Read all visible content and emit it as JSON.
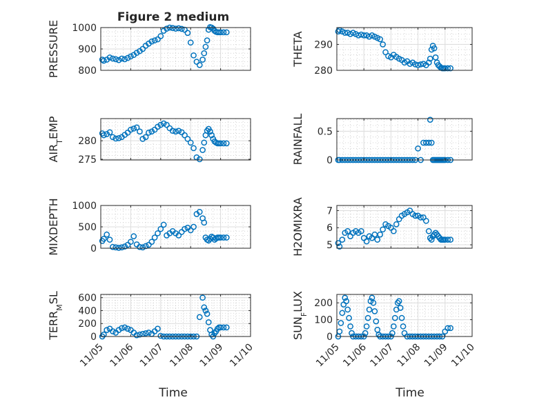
{
  "figure": {
    "title": "Figure 2 medium",
    "xlabel": "Time"
  },
  "colors": {
    "marker": "#0072BD",
    "axis": "#262626",
    "grid": "#dcdcdc",
    "minor_grid": "#c8c8c8"
  },
  "chart_data": [
    {
      "type": "scatter",
      "ylabel": "PRESSURE",
      "grid": true,
      "xlim": [
        "11/05",
        "11/10"
      ],
      "ylim": [
        800,
        1000
      ],
      "yticks": [
        800,
        900,
        1000
      ],
      "x": [
        0.05,
        0.1,
        0.2,
        0.3,
        0.4,
        0.5,
        0.6,
        0.7,
        0.8,
        0.9,
        1.0,
        1.1,
        1.2,
        1.3,
        1.4,
        1.5,
        1.6,
        1.7,
        1.8,
        1.9,
        2.0,
        2.1,
        2.2,
        2.3,
        2.4,
        2.5,
        2.6,
        2.7,
        2.8,
        2.9,
        3.0,
        3.1,
        3.2,
        3.3,
        3.4,
        3.45,
        3.5,
        3.55,
        3.6,
        3.65,
        3.7,
        3.75,
        3.8,
        3.85,
        3.9,
        3.95,
        4.0,
        4.1,
        4.2
      ],
      "y": [
        850,
        845,
        850,
        860,
        855,
        852,
        848,
        855,
        852,
        858,
        865,
        872,
        882,
        890,
        900,
        915,
        925,
        935,
        940,
        945,
        960,
        985,
        995,
        1000,
        998,
        995,
        997,
        994,
        990,
        975,
        930,
        870,
        840,
        825,
        850,
        880,
        910,
        940,
        990,
        1002,
        1000,
        995,
        985,
        980,
        978,
        978,
        978,
        978,
        978
      ]
    },
    {
      "type": "scatter",
      "ylabel": "THETA",
      "grid": true,
      "xlim": [
        "11/05",
        "11/10"
      ],
      "ylim": [
        280,
        296.5
      ],
      "yticks": [
        280,
        290
      ],
      "x": [
        0.05,
        0.1,
        0.2,
        0.3,
        0.4,
        0.5,
        0.6,
        0.7,
        0.8,
        0.9,
        1.0,
        1.1,
        1.2,
        1.3,
        1.4,
        1.5,
        1.6,
        1.7,
        1.8,
        1.9,
        2.0,
        2.1,
        2.2,
        2.3,
        2.4,
        2.5,
        2.6,
        2.7,
        2.8,
        2.9,
        3.0,
        3.1,
        3.2,
        3.3,
        3.4,
        3.45,
        3.5,
        3.55,
        3.6,
        3.65,
        3.7,
        3.75,
        3.8,
        3.85,
        3.9,
        3.95,
        4.0,
        4.1,
        4.2
      ],
      "y": [
        295,
        295.5,
        295,
        294.5,
        294.5,
        294,
        294.5,
        294,
        293.5,
        293.8,
        293.5,
        293.5,
        293,
        293.5,
        293,
        292.5,
        292,
        290,
        287,
        285.5,
        285,
        286,
        285.2,
        284.5,
        284,
        283,
        283.5,
        282.5,
        283,
        282.3,
        282,
        282.3,
        282.5,
        282,
        283,
        284.5,
        288,
        289.5,
        288.5,
        285,
        283,
        282,
        281.5,
        281,
        280.8,
        280.8,
        280.8,
        280.8,
        280.8
      ]
    },
    {
      "type": "scatter",
      "ylabel": "AIR_TEMP",
      "grid": true,
      "xlim": [
        "11/05",
        "11/10"
      ],
      "ylim": [
        274.8,
        286
      ],
      "yticks": [
        275,
        280
      ],
      "x": [
        0.05,
        0.1,
        0.2,
        0.3,
        0.4,
        0.5,
        0.6,
        0.7,
        0.8,
        0.9,
        1.0,
        1.1,
        1.2,
        1.3,
        1.4,
        1.5,
        1.6,
        1.7,
        1.8,
        1.9,
        2.0,
        2.1,
        2.2,
        2.3,
        2.4,
        2.5,
        2.6,
        2.7,
        2.8,
        2.9,
        3.0,
        3.1,
        3.2,
        3.3,
        3.4,
        3.45,
        3.5,
        3.55,
        3.6,
        3.65,
        3.7,
        3.75,
        3.8,
        3.85,
        3.9,
        3.95,
        4.0,
        4.1,
        4.2
      ],
      "y": [
        282,
        281.5,
        281.8,
        282.3,
        281,
        280.6,
        280.7,
        281,
        281.6,
        282.2,
        283,
        283.3,
        283.6,
        282.5,
        280.5,
        281,
        282.2,
        282.5,
        283,
        283.8,
        284.3,
        284.7,
        284.3,
        283.4,
        282.7,
        282.5,
        282.7,
        282.3,
        281.5,
        280.5,
        279.5,
        278,
        275.5,
        275,
        277.5,
        279.5,
        281.5,
        282.7,
        283.2,
        282.5,
        281.5,
        280.5,
        279.8,
        279.5,
        279.3,
        279.3,
        279.3,
        279.3,
        279.3
      ]
    },
    {
      "type": "scatter",
      "ylabel": "RAINFALL",
      "grid": true,
      "xlim": [
        "11/05",
        "11/10"
      ],
      "ylim": [
        0,
        0.72
      ],
      "yticks": [
        0,
        0.5
      ],
      "x": [
        0.05,
        0.1,
        0.2,
        0.3,
        0.4,
        0.5,
        0.6,
        0.7,
        0.8,
        0.9,
        1.0,
        1.1,
        1.2,
        1.3,
        1.4,
        1.5,
        1.6,
        1.7,
        1.8,
        1.9,
        2.0,
        2.1,
        2.2,
        2.3,
        2.4,
        2.5,
        2.6,
        2.7,
        2.8,
        2.9,
        3.0,
        3.1,
        3.2,
        3.3,
        3.4,
        3.45,
        3.5,
        3.55,
        3.6,
        3.65,
        3.7,
        3.75,
        3.8,
        3.85,
        3.9,
        3.95,
        4.0,
        4.1,
        4.2
      ],
      "y": [
        0,
        0,
        0,
        0,
        0,
        0,
        0,
        0,
        0,
        0,
        0,
        0,
        0,
        0,
        0,
        0,
        0,
        0,
        0,
        0,
        0,
        0,
        0,
        0,
        0,
        0,
        0,
        0,
        0,
        0,
        0.2,
        0,
        0.3,
        0.3,
        0.3,
        0.7,
        0.3,
        0,
        0,
        0,
        0,
        0,
        0,
        0,
        0,
        0,
        0,
        0,
        0
      ]
    },
    {
      "type": "scatter",
      "ylabel": "MIXDEPTH",
      "grid": true,
      "xlim": [
        "11/05",
        "11/10"
      ],
      "ylim": [
        0,
        1000
      ],
      "yticks": [
        0,
        500,
        1000
      ],
      "x": [
        0.05,
        0.1,
        0.2,
        0.3,
        0.4,
        0.5,
        0.6,
        0.7,
        0.8,
        0.9,
        1.0,
        1.1,
        1.2,
        1.3,
        1.4,
        1.5,
        1.6,
        1.7,
        1.8,
        1.9,
        2.0,
        2.1,
        2.2,
        2.3,
        2.4,
        2.5,
        2.6,
        2.7,
        2.8,
        2.9,
        3.0,
        3.1,
        3.2,
        3.3,
        3.4,
        3.45,
        3.5,
        3.55,
        3.6,
        3.65,
        3.7,
        3.75,
        3.8,
        3.85,
        3.9,
        3.95,
        4.0,
        4.1,
        4.2
      ],
      "y": [
        170,
        220,
        320,
        200,
        30,
        20,
        10,
        20,
        40,
        80,
        150,
        280,
        90,
        30,
        20,
        50,
        80,
        150,
        250,
        350,
        450,
        550,
        300,
        350,
        400,
        350,
        300,
        380,
        450,
        480,
        420,
        500,
        800,
        850,
        700,
        600,
        250,
        200,
        180,
        220,
        270,
        250,
        200,
        230,
        250,
        250,
        250,
        250,
        250
      ]
    },
    {
      "type": "scatter",
      "ylabel": "H2OMIXRA",
      "grid": true,
      "xlim": [
        "11/05",
        "11/10"
      ],
      "ylim": [
        4.8,
        7.3
      ],
      "yticks": [
        5,
        6,
        7
      ],
      "x": [
        0.05,
        0.1,
        0.2,
        0.3,
        0.4,
        0.5,
        0.6,
        0.7,
        0.8,
        0.9,
        1.0,
        1.1,
        1.2,
        1.3,
        1.4,
        1.5,
        1.6,
        1.7,
        1.8,
        1.9,
        2.0,
        2.1,
        2.2,
        2.3,
        2.4,
        2.5,
        2.6,
        2.7,
        2.8,
        2.9,
        3.0,
        3.1,
        3.2,
        3.3,
        3.4,
        3.45,
        3.5,
        3.55,
        3.6,
        3.65,
        3.7,
        3.75,
        3.8,
        3.85,
        3.9,
        3.95,
        4.0,
        4.1,
        4.2
      ],
      "y": [
        5.1,
        4.9,
        5.3,
        5.7,
        5.8,
        5.5,
        5.7,
        5.8,
        5.7,
        5.8,
        5.4,
        5.2,
        5.5,
        5.4,
        5.6,
        5.3,
        5.6,
        5.9,
        6.2,
        6.1,
        6.0,
        5.8,
        6.2,
        6.5,
        6.7,
        6.8,
        6.9,
        7.0,
        6.8,
        6.7,
        6.7,
        6.6,
        6.6,
        6.4,
        5.8,
        5.4,
        5.3,
        5.5,
        5.6,
        5.7,
        5.6,
        5.5,
        5.4,
        5.3,
        5.3,
        5.3,
        5.3,
        5.3,
        5.3
      ]
    },
    {
      "type": "scatter",
      "ylabel": "TERR_MSL",
      "grid": true,
      "xlim": [
        "11/05",
        "11/10"
      ],
      "ylim": [
        0,
        650
      ],
      "yticks": [
        0,
        200,
        400,
        600
      ],
      "x": [
        0.05,
        0.1,
        0.2,
        0.3,
        0.4,
        0.5,
        0.6,
        0.7,
        0.8,
        0.9,
        1.0,
        1.1,
        1.2,
        1.3,
        1.4,
        1.5,
        1.6,
        1.7,
        1.8,
        1.9,
        2.0,
        2.1,
        2.2,
        2.3,
        2.4,
        2.5,
        2.6,
        2.7,
        2.8,
        2.9,
        3.0,
        3.1,
        3.2,
        3.3,
        3.4,
        3.45,
        3.5,
        3.55,
        3.6,
        3.65,
        3.7,
        3.75,
        3.8,
        3.85,
        3.9,
        3.95,
        4.0,
        4.1,
        4.2
      ],
      "y": [
        0,
        30,
        100,
        120,
        80,
        60,
        100,
        130,
        140,
        120,
        100,
        60,
        20,
        30,
        40,
        50,
        60,
        40,
        80,
        120,
        10,
        0,
        0,
        0,
        0,
        0,
        0,
        0,
        0,
        0,
        0,
        0,
        0,
        300,
        600,
        450,
        400,
        350,
        220,
        100,
        30,
        0,
        50,
        80,
        120,
        140,
        140,
        140,
        140
      ]
    },
    {
      "type": "scatter",
      "ylabel": "SUN_FLUX",
      "grid": true,
      "xlim": [
        "11/05",
        "11/10"
      ],
      "ylim": [
        0,
        250
      ],
      "yticks": [
        0,
        100,
        200
      ],
      "xticks": [
        "11/05",
        "11/06",
        "11/07",
        "11/08",
        "11/09",
        "11/10"
      ],
      "x": [
        0.05,
        0.1,
        0.15,
        0.2,
        0.25,
        0.3,
        0.35,
        0.4,
        0.45,
        0.5,
        0.55,
        0.6,
        0.7,
        0.8,
        0.9,
        1.0,
        1.05,
        1.1,
        1.15,
        1.2,
        1.25,
        1.3,
        1.35,
        1.4,
        1.45,
        1.5,
        1.55,
        1.6,
        1.7,
        1.8,
        1.9,
        2.0,
        2.05,
        2.1,
        2.15,
        2.2,
        2.25,
        2.3,
        2.35,
        2.4,
        2.45,
        2.5,
        2.6,
        2.7,
        2.8,
        2.9,
        3.0,
        3.1,
        3.2,
        3.3,
        3.4,
        3.5,
        3.6,
        3.7,
        3.8,
        3.9,
        4.0,
        4.1,
        4.2
      ],
      "y": [
        0,
        30,
        80,
        140,
        190,
        230,
        210,
        160,
        110,
        60,
        20,
        0,
        0,
        0,
        0,
        0,
        20,
        60,
        110,
        160,
        210,
        230,
        200,
        150,
        90,
        40,
        10,
        0,
        0,
        0,
        0,
        0,
        20,
        60,
        110,
        160,
        200,
        210,
        170,
        110,
        60,
        20,
        0,
        0,
        0,
        0,
        0,
        0,
        0,
        0,
        0,
        0,
        0,
        0,
        0,
        0,
        30,
        50,
        50
      ]
    }
  ]
}
